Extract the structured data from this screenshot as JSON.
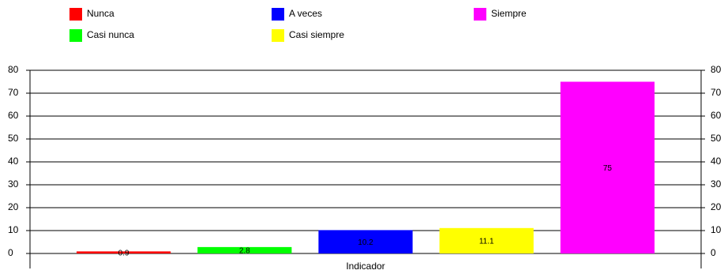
{
  "chart_data": {
    "type": "bar",
    "categories": [
      "Indicador"
    ],
    "series": [
      {
        "name": "Nunca",
        "color": "#ff0000",
        "values": [
          0.9
        ]
      },
      {
        "name": "Casi nunca",
        "color": "#00ff00",
        "values": [
          2.8
        ]
      },
      {
        "name": "A veces",
        "color": "#0000ff",
        "values": [
          10.2
        ]
      },
      {
        "name": "Casi siempre",
        "color": "#ffff00",
        "values": [
          11.1
        ]
      },
      {
        "name": "Siempre",
        "color": "#ff00ff",
        "values": [
          75
        ]
      }
    ],
    "ylim": [
      0,
      80
    ],
    "yticks": [
      0,
      10,
      20,
      30,
      40,
      50,
      60,
      70,
      80
    ],
    "y2lim": [
      0,
      80
    ],
    "y2ticks": [
      0,
      10,
      20,
      30,
      40,
      50,
      60,
      70,
      80
    ],
    "grid": true,
    "data_labels": true,
    "legend": "top"
  }
}
